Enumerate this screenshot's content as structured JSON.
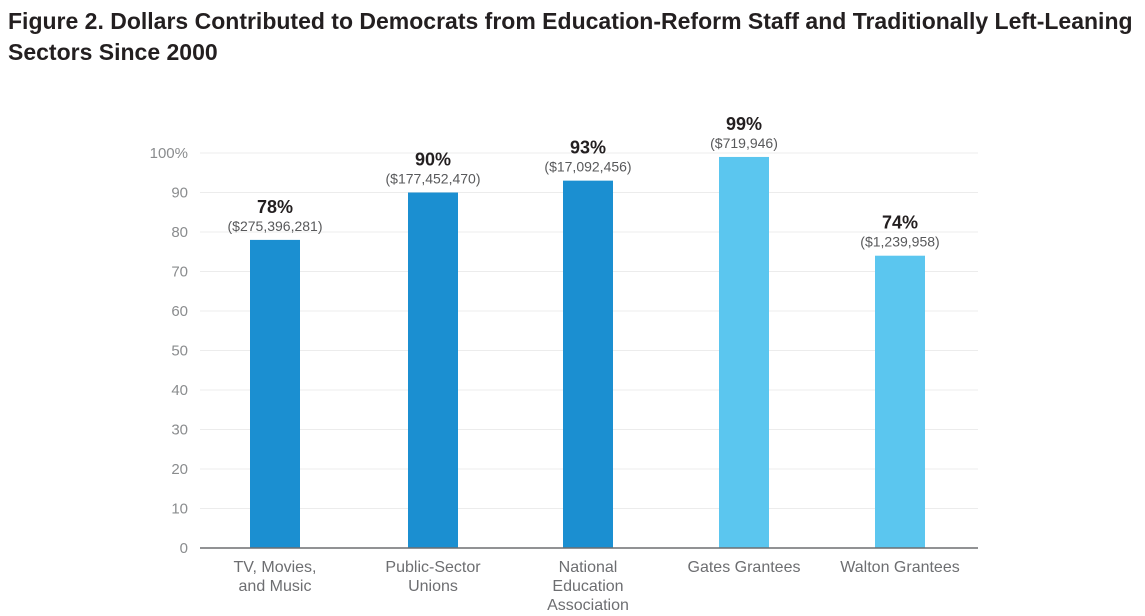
{
  "figure": {
    "title": "Figure 2. Dollars Contributed to Democrats from Education-Reform Staff and Traditionally Left-Leaning Sectors Since 2000"
  },
  "colors": {
    "dark_blue": "#1b8fd1",
    "light_blue": "#5bc6ef",
    "grid": "#ececec",
    "axis": "#6d6e71"
  },
  "chart_data": {
    "type": "bar",
    "title": "Figure 2. Dollars Contributed to Democrats from Education-Reform Staff and Traditionally Left-Leaning Sectors Since 2000",
    "xlabel": "",
    "ylabel": "",
    "ylim": [
      0,
      100
    ],
    "y_ticks": [
      "0",
      "10",
      "20",
      "30",
      "40",
      "50",
      "60",
      "70",
      "80",
      "90",
      "100%"
    ],
    "grid": true,
    "categories": [
      [
        "TV, Movies,",
        "and Music"
      ],
      [
        "Public-Sector",
        "Unions"
      ],
      [
        "National",
        "Education",
        "Association"
      ],
      [
        "Gates Grantees"
      ],
      [
        "Walton Grantees"
      ]
    ],
    "values": [
      78,
      90,
      93,
      99,
      74
    ],
    "value_labels": [
      "78%",
      "90%",
      "93%",
      "99%",
      "74%"
    ],
    "dollar_labels": [
      "($275,396,281)",
      "($177,452,470)",
      "($17,092,456)",
      "($719,946)",
      "($1,239,958)"
    ],
    "bar_colors": [
      "#1b8fd1",
      "#1b8fd1",
      "#1b8fd1",
      "#5bc6ef",
      "#5bc6ef"
    ]
  }
}
